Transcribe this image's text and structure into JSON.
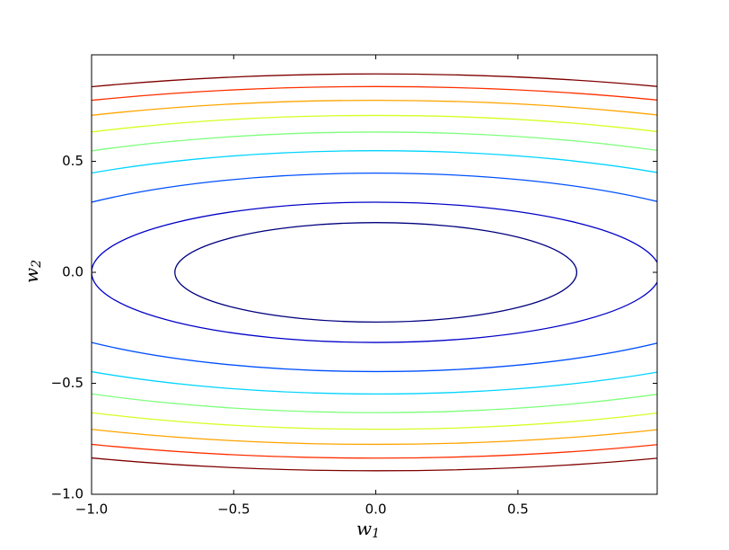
{
  "chart_data": {
    "type": "contour",
    "xlabel": {
      "base": "w",
      "sub": "1"
    },
    "ylabel": {
      "base": "w",
      "sub": "2"
    },
    "xlim": [
      -1,
      0.99
    ],
    "ylim": [
      -1,
      0.98
    ],
    "xticks": [
      {
        "value": -1,
        "label": "−1.0"
      },
      {
        "value": -0.5,
        "label": "−0.5"
      },
      {
        "value": 0,
        "label": "0.0"
      },
      0.5
    ],
    "yticks": [
      {
        "value": -1,
        "label": "−1.0"
      },
      {
        "value": -0.5,
        "label": "−0.5"
      },
      {
        "value": 0,
        "label": "0.0"
      },
      0.5
    ],
    "contours": [
      {
        "color": "#00007f",
        "rx": 0.707,
        "ry": 0.224
      },
      {
        "color": "#0000c8",
        "rx": 1.0,
        "ry": 0.316
      },
      {
        "color": "#0050ff",
        "rx": 1.414,
        "ry": 0.447
      },
      {
        "color": "#00d4ff",
        "rx": 1.732,
        "ry": 0.548
      },
      {
        "color": "#7dff7a",
        "rx": 2.0,
        "ry": 0.632
      },
      {
        "color": "#d4ff23",
        "rx": 2.236,
        "ry": 0.707
      },
      {
        "color": "#ffa400",
        "rx": 2.449,
        "ry": 0.775
      },
      {
        "color": "#ff3000",
        "rx": 2.646,
        "ry": 0.837
      },
      {
        "color": "#7f0000",
        "rx": 2.828,
        "ry": 0.894
      }
    ]
  }
}
